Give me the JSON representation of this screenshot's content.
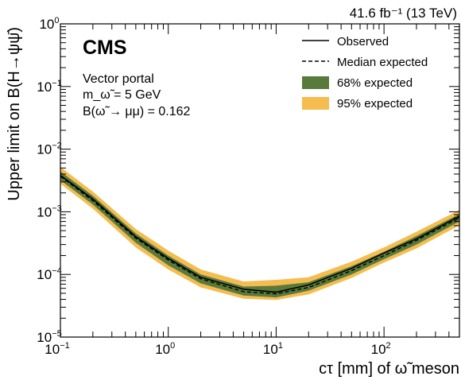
{
  "chart_data": {
    "type": "line",
    "lumi_label": "41.6 fb⁻¹ (13 TeV)",
    "experiment_label": "CMS",
    "annotations": [
      "Vector portal",
      "m_ω̃ = 5 GeV",
      "B(ω̃ → μμ) = 0.162"
    ],
    "xlabel": "cτ [mm] of ω̃ meson",
    "ylabel": "Upper limit on B(H→ψψ̄)",
    "x_scale": "log",
    "y_scale": "log",
    "xlim": [
      0.1,
      500
    ],
    "ylim": [
      1e-05,
      1
    ],
    "x_ticks": [
      {
        "value": 0.1,
        "base": "10",
        "exp": "−1"
      },
      {
        "value": 1,
        "base": "10",
        "exp": "0"
      },
      {
        "value": 10,
        "base": "10",
        "exp": "1"
      },
      {
        "value": 100,
        "base": "10",
        "exp": "2"
      }
    ],
    "y_ticks": [
      {
        "value": 1e-05,
        "base": "10",
        "exp": "−5"
      },
      {
        "value": 0.0001,
        "base": "10",
        "exp": "−4"
      },
      {
        "value": 0.001,
        "base": "10",
        "exp": "−3"
      },
      {
        "value": 0.01,
        "base": "10",
        "exp": "−2"
      },
      {
        "value": 0.1,
        "base": "10",
        "exp": "−1"
      },
      {
        "value": 1,
        "base": "10",
        "exp": "0"
      }
    ],
    "legend_position": "top-right",
    "legend": [
      {
        "name": "Observed",
        "style": "solid"
      },
      {
        "name": "Median expected",
        "style": "dashed"
      },
      {
        "name": "68% expected",
        "style": "band",
        "color": "#5a7a3c"
      },
      {
        "name": "95% expected",
        "style": "band",
        "color": "#f5bc50"
      }
    ],
    "x": [
      0.1,
      0.2,
      0.5,
      1,
      2,
      5,
      10,
      20,
      50,
      100,
      200,
      500
    ],
    "series": [
      {
        "name": "Observed",
        "values": [
          0.0038,
          0.0016,
          0.0004,
          0.00018,
          9e-05,
          5.8e-05,
          5.2e-05,
          6.8e-05,
          0.000125,
          0.00022,
          0.00037,
          0.00085
        ]
      },
      {
        "name": "Median expected",
        "values": [
          0.0037,
          0.0015,
          0.00038,
          0.00017,
          8.5e-05,
          5.3e-05,
          4.9e-05,
          6.2e-05,
          0.000115,
          0.0002,
          0.00035,
          0.0008
        ]
      }
    ],
    "band_68": {
      "lower": [
        0.0032,
        0.0013,
        0.00032,
        0.00014,
        7.2e-05,
        4.6e-05,
        4.3e-05,
        5.5e-05,
        0.0001,
        0.000175,
        0.0003,
        0.0007
      ],
      "upper": [
        0.0044,
        0.0018,
        0.00045,
        0.0002,
        0.0001,
        6.4e-05,
        6.6e-05,
        7.5e-05,
        0.000135,
        0.00023,
        0.00041,
        0.00092
      ]
    },
    "band_95": {
      "lower": [
        0.0028,
        0.00112,
        0.00027,
        0.00012,
        6.2e-05,
        4.1e-05,
        3.9e-05,
        4.8e-05,
        8.8e-05,
        0.000155,
        0.00026,
        0.00061
      ],
      "upper": [
        0.0052,
        0.0021,
        0.00053,
        0.00024,
        0.00012,
        7.7e-05,
        8.2e-05,
        9e-05,
        0.00016,
        0.00027,
        0.00048,
        0.00107
      ]
    },
    "colors": {
      "band_68": "#5a7a3c",
      "band_95": "#f5bc50",
      "lines": "#000000"
    }
  }
}
